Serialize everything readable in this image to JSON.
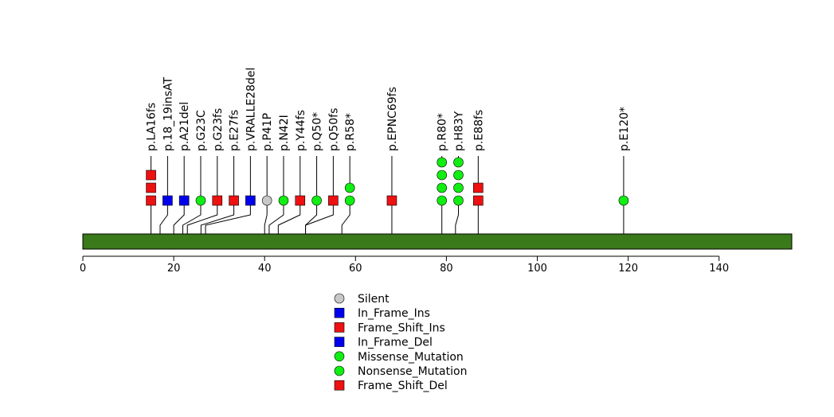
{
  "chart_data": {
    "type": "lollipop",
    "title": "",
    "xlabel": "",
    "ylabel": "",
    "xlim": [
      0,
      156
    ],
    "xticks": [
      0,
      20,
      40,
      60,
      80,
      100,
      120,
      140
    ],
    "protein_bar_color": "#3a7a1a",
    "mutations": [
      {
        "label": "p.LA16fs",
        "pos": 15,
        "type": "Frame_Shift_Del",
        "count": 3
      },
      {
        "label": "p.18_19insAT",
        "pos": 17,
        "type": "In_Frame_Ins",
        "count": 1
      },
      {
        "label": "p.A21del",
        "pos": 20,
        "type": "In_Frame_Del",
        "count": 1
      },
      {
        "label": "p.G23C",
        "pos": 22,
        "type": "Missense_Mutation",
        "count": 1
      },
      {
        "label": "p.G23fs",
        "pos": 23,
        "type": "Frame_Shift_Del",
        "count": 1
      },
      {
        "label": "p.E27fs",
        "pos": 26,
        "type": "Frame_Shift_Del",
        "count": 1
      },
      {
        "label": "p.VRALLE28del",
        "pos": 27,
        "type": "In_Frame_Del",
        "count": 1
      },
      {
        "label": "p.P41P",
        "pos": 40,
        "type": "Silent",
        "count": 1
      },
      {
        "label": "p.N42I",
        "pos": 41,
        "type": "Missense_Mutation",
        "count": 1
      },
      {
        "label": "p.Y44fs",
        "pos": 43,
        "type": "Frame_Shift_Ins",
        "count": 1
      },
      {
        "label": "p.Q50*",
        "pos": 49,
        "type": "Nonsense_Mutation",
        "count": 1
      },
      {
        "label": "p.Q50fs",
        "pos": 49,
        "type": "Frame_Shift_Del",
        "count": 1
      },
      {
        "label": "p.R58*",
        "pos": 57,
        "type": "Nonsense_Mutation",
        "count": 2
      },
      {
        "label": "p.EPNC69fs",
        "pos": 68,
        "type": "Frame_Shift_Del",
        "count": 1
      },
      {
        "label": "p.R80*",
        "pos": 79,
        "type": "Nonsense_Mutation",
        "count": 4
      },
      {
        "label": "p.H83Y",
        "pos": 82,
        "type": "Missense_Mutation",
        "count": 4
      },
      {
        "label": "p.E88fs",
        "pos": 87,
        "type": "Frame_Shift_Del",
        "count": 2
      },
      {
        "label": "p.E120*",
        "pos": 119,
        "type": "Nonsense_Mutation",
        "count": 1
      }
    ],
    "legend": [
      {
        "label": "Silent",
        "shape": "circle",
        "color": "#c8c8c8"
      },
      {
        "label": "In_Frame_Ins",
        "shape": "square",
        "color": "#0000ee"
      },
      {
        "label": "Frame_Shift_Ins",
        "shape": "square",
        "color": "#ee1111"
      },
      {
        "label": "In_Frame_Del",
        "shape": "square",
        "color": "#0000ee"
      },
      {
        "label": "Missense_Mutation",
        "shape": "circle",
        "color": "#11ee11"
      },
      {
        "label": "Nonsense_Mutation",
        "shape": "circle",
        "color": "#11ee11"
      },
      {
        "label": "Frame_Shift_Del",
        "shape": "square",
        "color": "#ee1111"
      }
    ],
    "legend_position": "bottom-center"
  }
}
